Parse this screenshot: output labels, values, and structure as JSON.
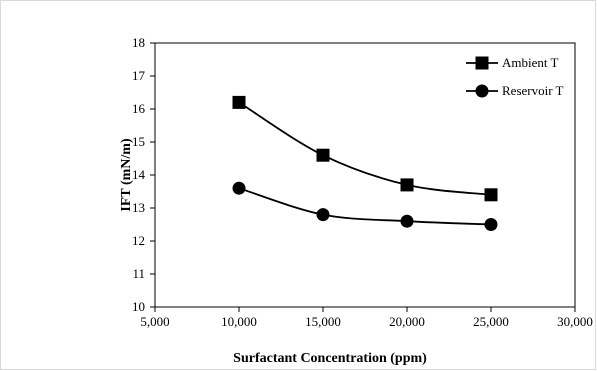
{
  "chart_data": {
    "type": "line",
    "xlabel": "Surfactant Concentration (ppm)",
    "ylabel": "IFT (mN/m)",
    "xlim": [
      5000,
      30000
    ],
    "ylim": [
      10,
      18
    ],
    "xticks": [
      5000,
      10000,
      15000,
      20000,
      25000,
      30000
    ],
    "xtick_labels": [
      "5,000",
      "10,000",
      "15,000",
      "20,000",
      "25,000",
      "30,000"
    ],
    "yticks": [
      10,
      11,
      12,
      13,
      14,
      15,
      16,
      17,
      18
    ],
    "ytick_labels": [
      "10",
      "11",
      "12",
      "13",
      "14",
      "15",
      "16",
      "17",
      "18"
    ],
    "grid": false,
    "legend_position": "top-right",
    "x": [
      10000,
      15000,
      20000,
      25000
    ],
    "series": [
      {
        "name": "Ambient T",
        "marker": "square",
        "values": [
          16.2,
          14.6,
          13.7,
          13.4
        ]
      },
      {
        "name": "Reservoir T",
        "marker": "circle",
        "values": [
          13.6,
          12.8,
          12.6,
          12.5
        ]
      }
    ]
  },
  "colors": {
    "series": "#000000",
    "axis": "#000000",
    "frame": "#d9d9d9"
  }
}
